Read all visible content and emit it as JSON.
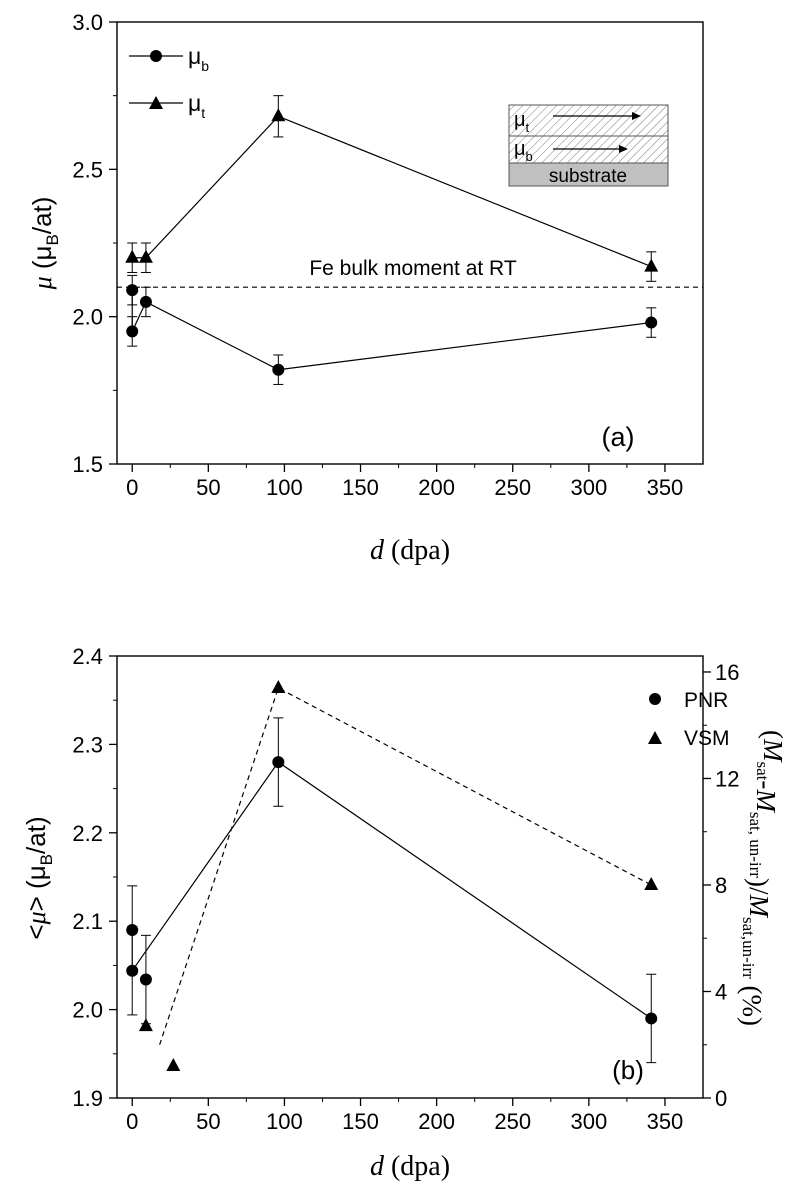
{
  "chart_data": [
    {
      "type": "line",
      "panel_label": "(a)",
      "xlabel": {
        "var": "d",
        "unit": "(dpa)"
      },
      "ylabel": {
        "var": "μ",
        "open": "(μ",
        "sub": "B",
        "close": "/at)"
      },
      "xlim": [
        -10,
        375
      ],
      "ylim": [
        1.5,
        3.0
      ],
      "xticks": [
        "0",
        "50",
        "100",
        "150",
        "200",
        "250",
        "300",
        "350"
      ],
      "xtick_values": [
        0,
        50,
        100,
        150,
        200,
        250,
        300,
        350
      ],
      "yticks": [
        "1.5",
        "2.0",
        "2.5",
        "3.0"
      ],
      "ytick_values": [
        1.5,
        2.0,
        2.5,
        3.0
      ],
      "legend_position": "top-left",
      "series": [
        {
          "name": "μ",
          "name_sub": "b",
          "marker": "circle",
          "x": [
            0,
            0,
            9,
            96,
            341
          ],
          "y": [
            2.09,
            1.95,
            2.05,
            1.82,
            1.98
          ],
          "err": [
            0.05,
            0.05,
            0.05,
            0.05,
            0.05
          ],
          "line_x": [
            0,
            0,
            9,
            96,
            341
          ],
          "line_y": [
            2.09,
            1.95,
            2.05,
            1.82,
            1.98
          ]
        },
        {
          "name": "μ",
          "name_sub": "t",
          "marker": "triangle",
          "x": [
            0,
            9,
            96,
            341
          ],
          "y": [
            2.2,
            2.2,
            2.68,
            2.17
          ],
          "err": [
            0.05,
            0.05,
            0.07,
            0.05
          ],
          "line_x": [
            0,
            9,
            96,
            341
          ],
          "line_y": [
            2.2,
            2.2,
            2.68,
            2.17
          ]
        }
      ],
      "reference_line": {
        "y": 2.1,
        "label": "Fe bulk moment at RT",
        "style": "dashed"
      },
      "inset": {
        "top": {
          "var": "μ",
          "sub": "t"
        },
        "bottom": {
          "var": "μ",
          "sub": "b"
        },
        "substrate": "substrate",
        "colors": {
          "hatch": "#808080",
          "substrate": "#c0c0c0"
        }
      }
    },
    {
      "type": "line",
      "panel_label": "(b)",
      "xlabel": {
        "var": "d",
        "unit": "(dpa)"
      },
      "ylabel": {
        "open": "<",
        "var": "μ",
        "mid": "> (μ",
        "sub": "B",
        "close": "/at)"
      },
      "ylabel_right": "(M_sat - M_sat,un-irr)/M_sat,un-irr (%)",
      "ylabel_right_parts": [
        {
          "t": "(",
          "style": "normal"
        },
        {
          "t": "M",
          "style": "italic"
        },
        {
          "t": "sat",
          "style": "sub"
        },
        {
          "t": "-",
          "style": "normal"
        },
        {
          "t": "M",
          "style": "italic"
        },
        {
          "t": "sat, un-irr",
          "style": "sub"
        },
        {
          "t": ")/",
          "style": "normal"
        },
        {
          "t": "M",
          "style": "italic"
        },
        {
          "t": "sat,un-irr",
          "style": "sub"
        },
        {
          "t": " (%)",
          "style": "normal"
        }
      ],
      "xlim": [
        -10,
        375
      ],
      "ylim": [
        1.9,
        2.4
      ],
      "ylim_right": [
        0,
        16.6
      ],
      "xticks": [
        "0",
        "50",
        "100",
        "150",
        "200",
        "250",
        "300",
        "350"
      ],
      "xtick_values": [
        0,
        50,
        100,
        150,
        200,
        250,
        300,
        350
      ],
      "yticks": [
        "1.9",
        "2.0",
        "2.1",
        "2.2",
        "2.3",
        "2.4"
      ],
      "ytick_values": [
        1.9,
        2.0,
        2.1,
        2.2,
        2.3,
        2.4
      ],
      "yticks_right": [
        "0",
        "4",
        "8",
        "12",
        "16"
      ],
      "ytick_values_right": [
        0,
        4,
        8,
        12,
        16
      ],
      "legend_position": "top-right",
      "series": [
        {
          "name": "PNR",
          "marker": "circle",
          "axis": "left",
          "x": [
            0,
            0,
            9,
            96,
            341
          ],
          "y": [
            2.09,
            2.044,
            2.034,
            2.28,
            1.99
          ],
          "err": [
            0.05,
            0.05,
            0.05,
            0.05,
            0.05
          ],
          "line_x": [
            0,
            96,
            341
          ],
          "line_y": [
            2.044,
            2.28,
            1.99
          ]
        },
        {
          "name": "VSM",
          "marker": "triangle",
          "axis": "right",
          "x": [
            9,
            27,
            96,
            341
          ],
          "y": [
            2.7,
            1.2,
            15.4,
            8.0
          ],
          "line_x": [
            18,
            96,
            341
          ],
          "line_y": [
            2.0,
            15.4,
            8.0
          ],
          "line_style": "dashed"
        }
      ]
    }
  ]
}
